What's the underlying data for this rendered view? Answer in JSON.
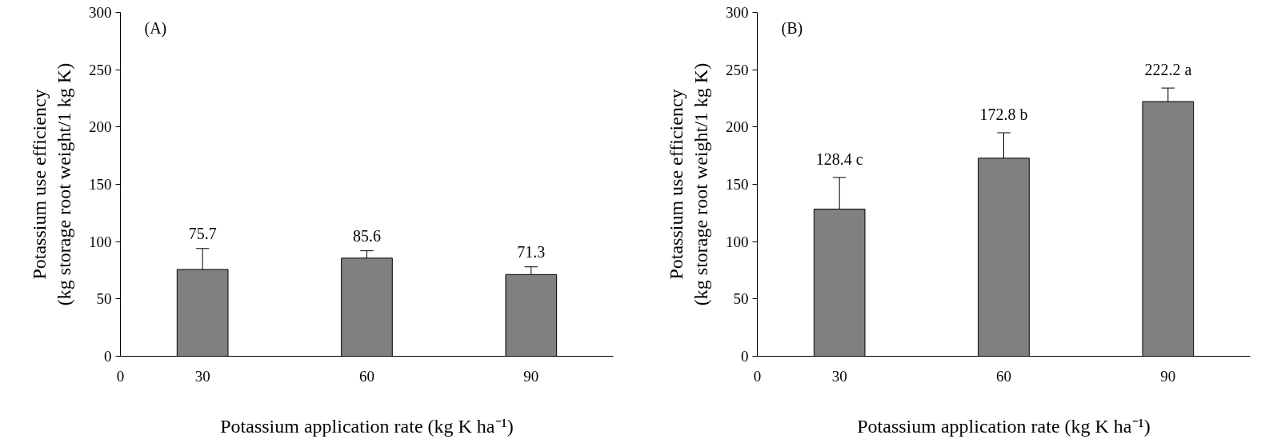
{
  "chart_data": [
    {
      "type": "bar",
      "ylabel": "Potassium use efficiency\n(kg storage root weight/1 kg K)",
      "xlabel": "Potassium application rate (kg K ha⁻¹)",
      "annotations": [
        "(A)",
        "0"
      ],
      "categories": [
        "30",
        "60",
        "90"
      ],
      "values": [
        75.7,
        85.6,
        71.3
      ],
      "color": "#808080",
      "errors": [
        [
          75.7,
          94
        ],
        [
          85.6,
          92
        ],
        [
          71.3,
          78
        ]
      ],
      "value_labels": [
        "75.7",
        "85.6",
        "71.3"
      ],
      "ylim": [
        0,
        300
      ],
      "yticks": [
        0,
        50,
        100,
        150,
        200,
        250,
        300
      ],
      "grid": false
    },
    {
      "type": "bar",
      "ylabel": "Potassium use efficiency\n(kg storage root weight/1 kg K)",
      "xlabel": "Potassium application rate (kg K ha⁻¹)",
      "annotations": [
        "(B)",
        "0"
      ],
      "categories": [
        "30",
        "60",
        "90"
      ],
      "values": [
        128.4,
        172.8,
        222.2
      ],
      "color": "#808080",
      "errors": [
        [
          128.4,
          156
        ],
        [
          172.8,
          195
        ],
        [
          222.2,
          234
        ]
      ],
      "value_labels": [
        "128.4 c",
        "172.8 b",
        "222.2 a"
      ],
      "ylim": [
        0,
        300
      ],
      "yticks": [
        0,
        50,
        100,
        150,
        200,
        250,
        300
      ],
      "grid": false
    }
  ]
}
